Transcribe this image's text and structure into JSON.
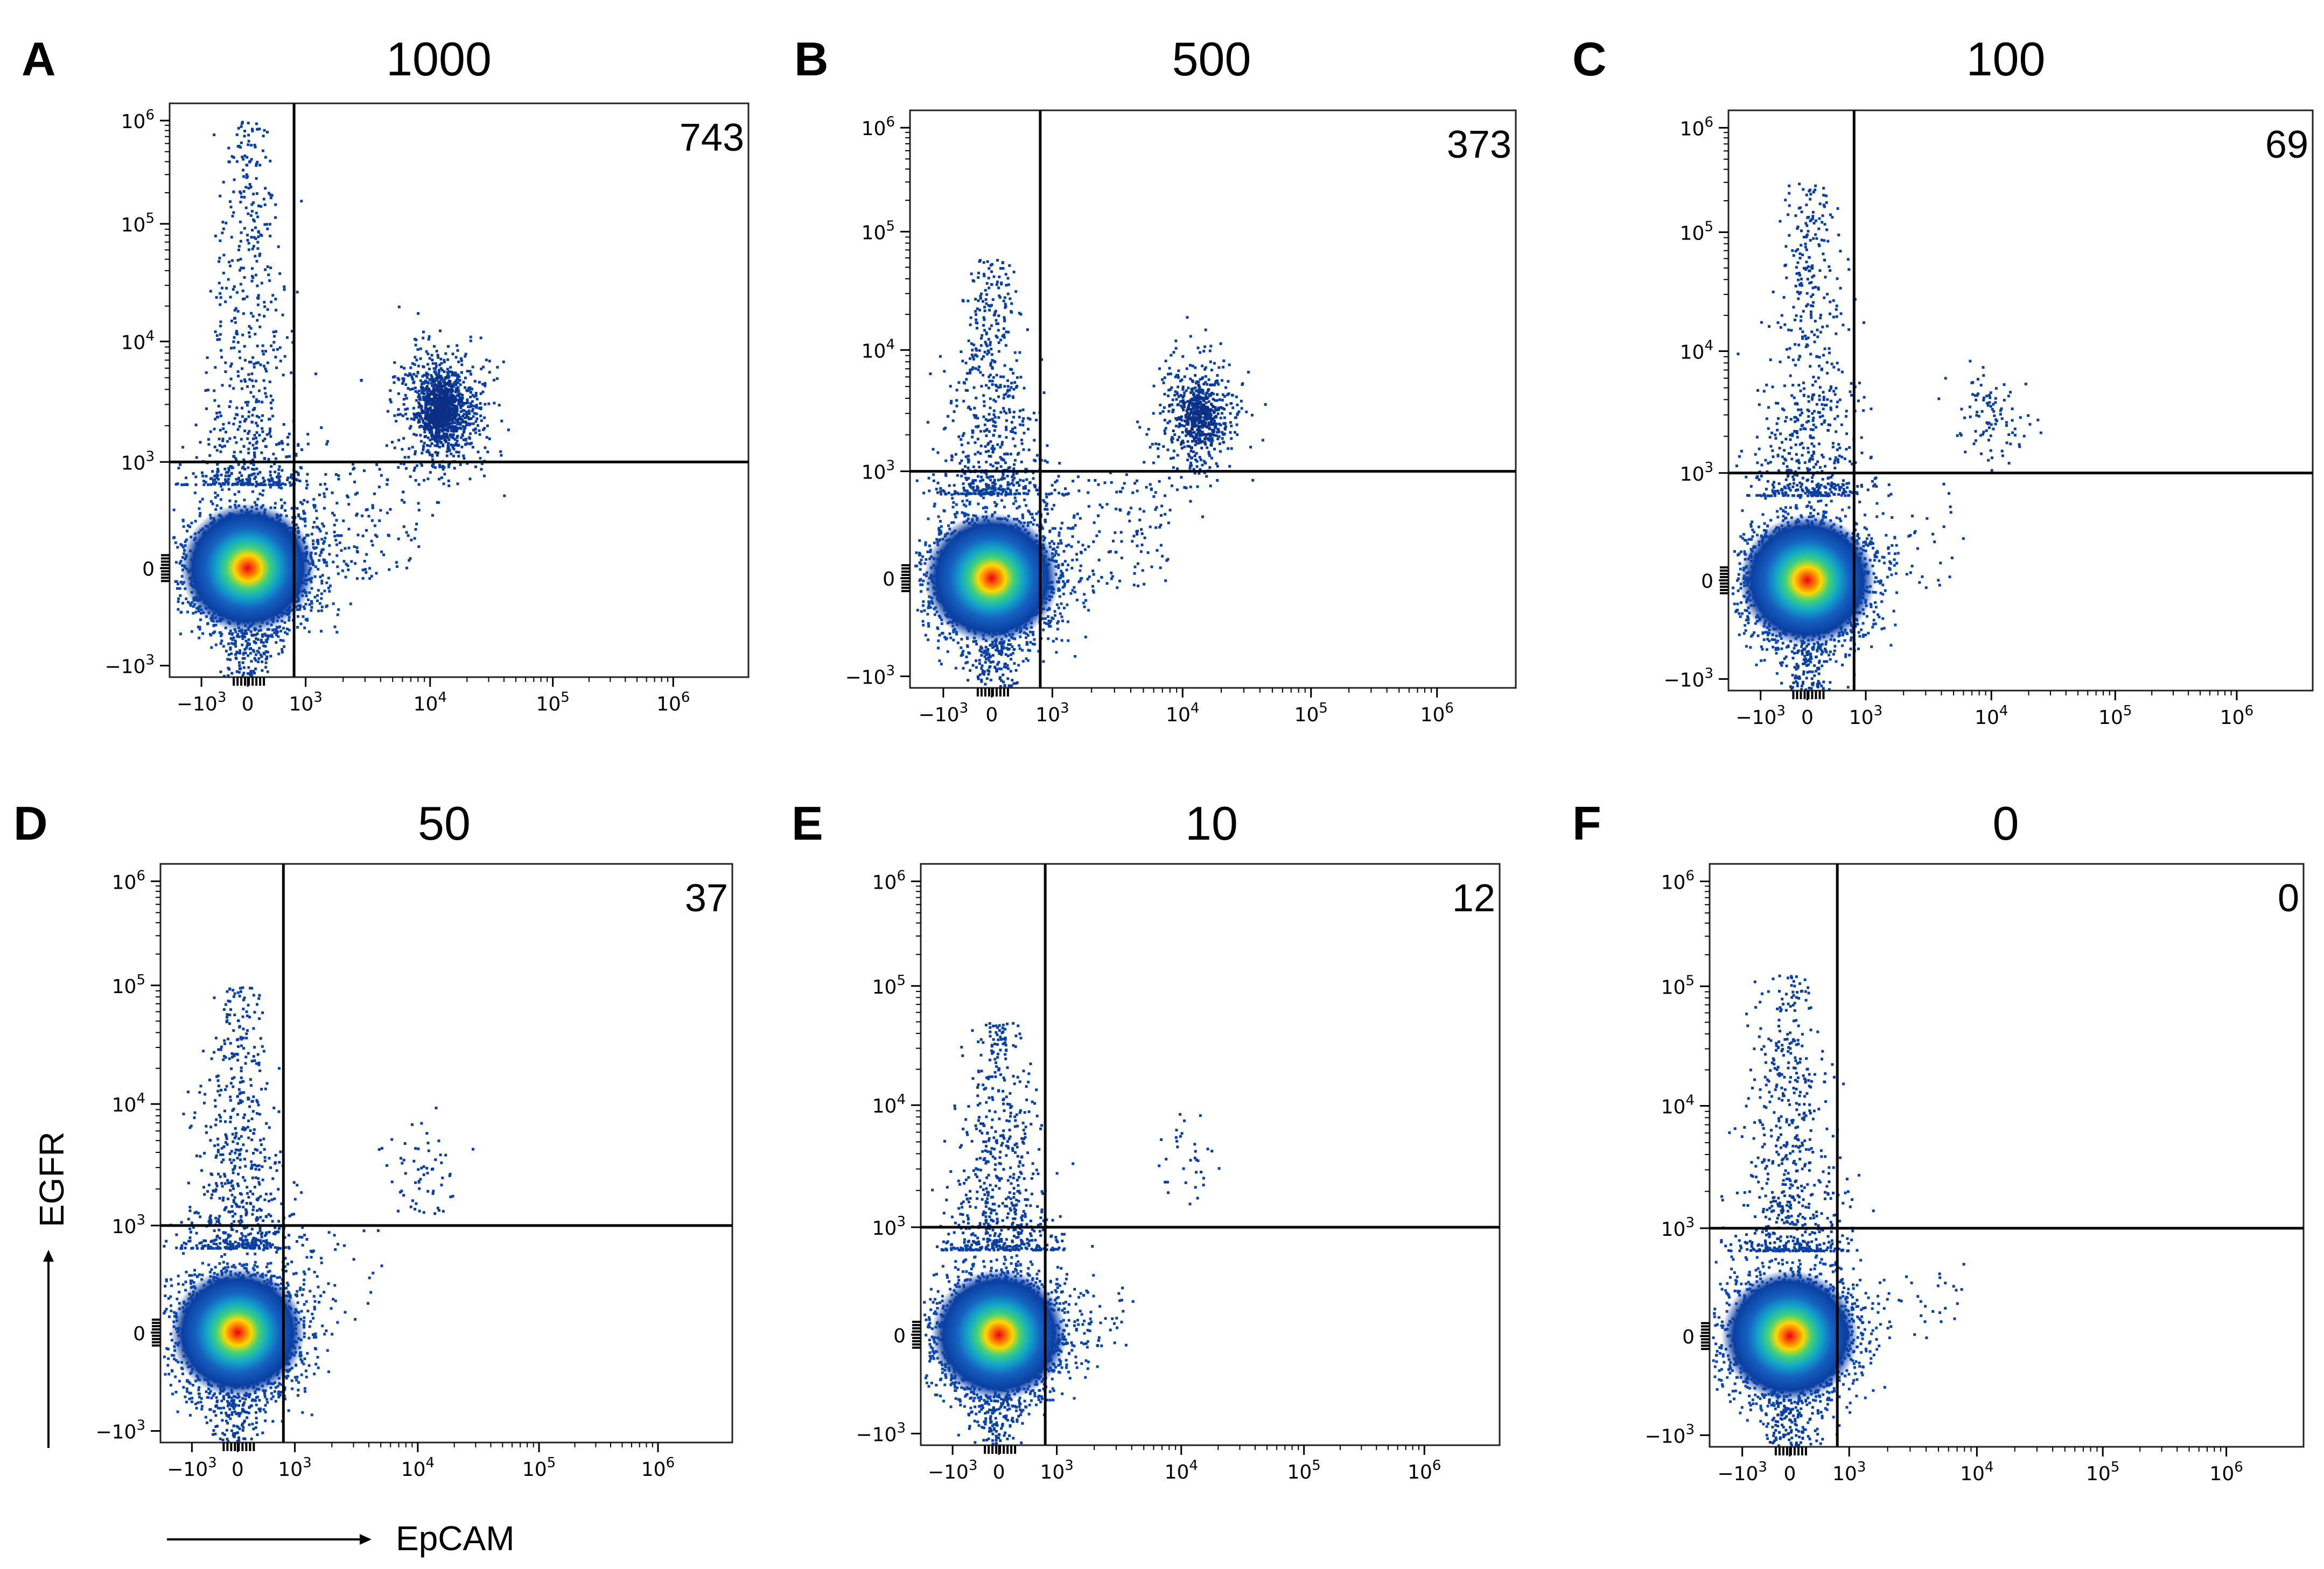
{
  "figure": {
    "x_axis_title": "EpCAM",
    "y_axis_title": "EGFR"
  },
  "chart_data": [
    {
      "type": "scatter",
      "panel_label": "A",
      "title": "1000",
      "count_label": "743",
      "xlabel": "EpCAM",
      "ylabel": "EGFR",
      "x_scale": "biexponential",
      "y_scale": "biexponential",
      "x_ticks": [
        "-10^3",
        "0",
        "10^3",
        "10^4",
        "10^5",
        "10^6"
      ],
      "y_ticks": [
        "-10^3",
        "0",
        "10^3",
        "10^4",
        "10^5",
        "10^6"
      ],
      "gate": {
        "x": 800,
        "y": 1000
      },
      "populations": [
        {
          "name": "negative",
          "center": [
            0,
            0
          ],
          "density": "high"
        },
        {
          "name": "egfr_positive_tail",
          "x": 0,
          "y_range": [
            1000,
            1000000
          ],
          "density": "medium"
        },
        {
          "name": "double_positive",
          "center": [
            12000,
            2800
          ],
          "events": 743,
          "density": "medium"
        },
        {
          "name": "bridge",
          "x_range": [
            800,
            8000
          ],
          "y_range": [
            -100,
            1000
          ],
          "density": "low"
        }
      ]
    },
    {
      "type": "scatter",
      "panel_label": "B",
      "title": "500",
      "count_label": "373",
      "xlabel": "EpCAM",
      "ylabel": "EGFR",
      "x_scale": "biexponential",
      "y_scale": "biexponential",
      "x_ticks": [
        "-10^3",
        "0",
        "10^3",
        "10^4",
        "10^5",
        "10^6"
      ],
      "y_ticks": [
        "-10^3",
        "0",
        "10^3",
        "10^4",
        "10^5",
        "10^6"
      ],
      "gate": {
        "x": 800,
        "y": 1000
      },
      "populations": [
        {
          "name": "negative",
          "center": [
            0,
            0
          ],
          "density": "high"
        },
        {
          "name": "egfr_positive_tail",
          "x": 0,
          "y_range": [
            1000,
            60000
          ],
          "density": "medium"
        },
        {
          "name": "double_positive",
          "center": [
            13000,
            2900
          ],
          "events": 373,
          "density": "medium"
        },
        {
          "name": "bridge",
          "x_range": [
            800,
            8000
          ],
          "y_range": [
            -100,
            1000
          ],
          "density": "low"
        }
      ]
    },
    {
      "type": "scatter",
      "panel_label": "C",
      "title": "100",
      "count_label": "69",
      "xlabel": "EpCAM",
      "ylabel": "EGFR",
      "x_scale": "biexponential",
      "y_scale": "biexponential",
      "x_ticks": [
        "-10^3",
        "0",
        "10^3",
        "10^4",
        "10^5",
        "10^6"
      ],
      "y_ticks": [
        "-10^3",
        "0",
        "10^3",
        "10^4",
        "10^5",
        "10^6"
      ],
      "gate": {
        "x": 800,
        "y": 1000
      },
      "populations": [
        {
          "name": "negative",
          "center": [
            0,
            0
          ],
          "density": "high"
        },
        {
          "name": "egfr_positive_tail",
          "x": 0,
          "y_range": [
            1000,
            300000
          ],
          "density": "medium"
        },
        {
          "name": "double_positive",
          "center": [
            10000,
            3000
          ],
          "events": 69,
          "density": "low"
        },
        {
          "name": "bridge",
          "x_range": [
            800,
            6000
          ],
          "y_range": [
            -100,
            1000
          ],
          "density": "low"
        }
      ]
    },
    {
      "type": "scatter",
      "panel_label": "D",
      "title": "50",
      "count_label": "37",
      "xlabel": "EpCAM",
      "ylabel": "EGFR",
      "x_scale": "biexponential",
      "y_scale": "biexponential",
      "x_ticks": [
        "-10^3",
        "0",
        "10^3",
        "10^4",
        "10^5",
        "10^6"
      ],
      "y_ticks": [
        "-10^3",
        "0",
        "10^3",
        "10^4",
        "10^5",
        "10^6"
      ],
      "gate": {
        "x": 800,
        "y": 1000
      },
      "populations": [
        {
          "name": "negative",
          "center": [
            0,
            0
          ],
          "density": "high"
        },
        {
          "name": "egfr_positive_tail",
          "x": 0,
          "y_range": [
            1000,
            100000
          ],
          "density": "medium"
        },
        {
          "name": "double_positive",
          "center": [
            10000,
            2700
          ],
          "events": 37,
          "density": "low"
        },
        {
          "name": "bridge",
          "x_range": [
            800,
            5000
          ],
          "y_range": [
            -100,
            1000
          ],
          "density": "low"
        }
      ]
    },
    {
      "type": "scatter",
      "panel_label": "E",
      "title": "10",
      "count_label": "12",
      "xlabel": "EpCAM",
      "ylabel": "EGFR",
      "x_scale": "biexponential",
      "y_scale": "biexponential",
      "x_ticks": [
        "-10^3",
        "0",
        "10^3",
        "10^4",
        "10^5",
        "10^6"
      ],
      "y_ticks": [
        "-10^3",
        "0",
        "10^3",
        "10^4",
        "10^5",
        "10^6"
      ],
      "gate": {
        "x": 800,
        "y": 1000
      },
      "populations": [
        {
          "name": "negative",
          "center": [
            0,
            0
          ],
          "density": "high"
        },
        {
          "name": "egfr_positive_tail",
          "x": 0,
          "y_range": [
            1000,
            50000
          ],
          "density": "medium"
        },
        {
          "name": "double_positive",
          "center": [
            12000,
            3500
          ],
          "events": 12,
          "density": "low"
        },
        {
          "name": "bridge",
          "x_range": [
            800,
            4000
          ],
          "y_range": [
            -100,
            500
          ],
          "density": "low"
        }
      ]
    },
    {
      "type": "scatter",
      "panel_label": "F",
      "title": "0",
      "count_label": "0",
      "xlabel": "EpCAM",
      "ylabel": "EGFR",
      "x_scale": "biexponential",
      "y_scale": "biexponential",
      "x_ticks": [
        "-10^3",
        "0",
        "10^3",
        "10^4",
        "10^5",
        "10^6"
      ],
      "y_ticks": [
        "-10^3",
        "0",
        "10^3",
        "10^4",
        "10^5",
        "10^6"
      ],
      "gate": {
        "x": 800,
        "y": 1000
      },
      "populations": [
        {
          "name": "negative",
          "center": [
            0,
            0
          ],
          "density": "high"
        },
        {
          "name": "egfr_positive_tail",
          "x": 0,
          "y_range": [
            1000,
            130000
          ],
          "density": "medium"
        },
        {
          "name": "double_positive",
          "center": [
            0,
            0
          ],
          "events": 0,
          "density": "none"
        },
        {
          "name": "bridge",
          "x_range": [
            800,
            8000
          ],
          "y_range": [
            -100,
            700
          ],
          "density": "low"
        }
      ]
    }
  ]
}
